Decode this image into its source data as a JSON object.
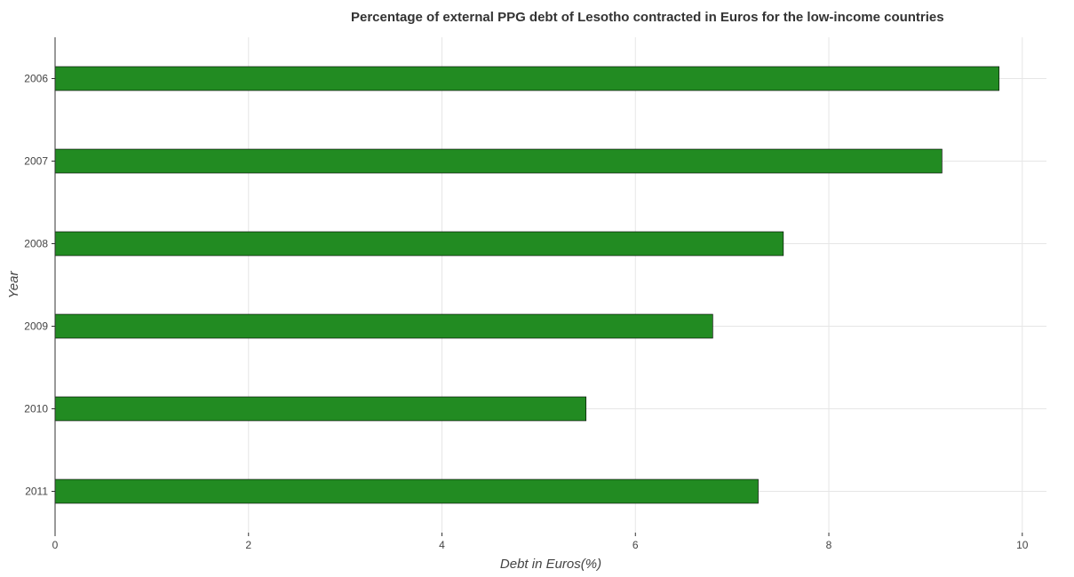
{
  "chart_data": {
    "type": "bar",
    "orientation": "horizontal",
    "title": "Percentage of external PPG debt of Lesotho contracted in Euros for the low-income countries",
    "xlabel": "Debt in Euros(%)",
    "ylabel": "Year",
    "categories": [
      "2006",
      "2007",
      "2008",
      "2009",
      "2010",
      "2011"
    ],
    "values": [
      9.76,
      9.17,
      7.53,
      6.8,
      5.49,
      7.27
    ],
    "xlim": [
      0,
      10.25
    ],
    "xticks": [
      0,
      2,
      4,
      6,
      8,
      10
    ],
    "xtick_labels": [
      "0",
      "2",
      "4",
      "6",
      "8",
      "10"
    ],
    "grid": true,
    "bar_color": "#228B22",
    "bar_edge_color": "#000000"
  }
}
